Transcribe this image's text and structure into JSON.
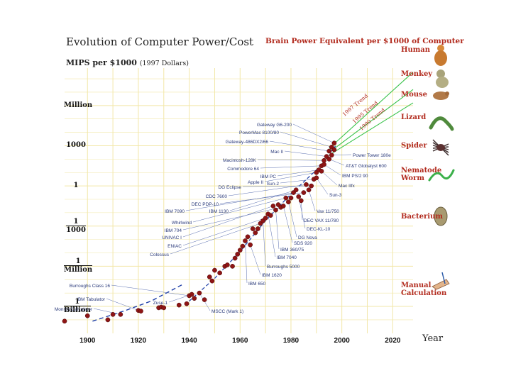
{
  "title": "Evolution of Computer Power/Cost",
  "right_title": "Brain Power Equivalent per $1000 of Computer",
  "axis_title": "MIPS per $1000",
  "axis_title_note": "(1997 Dollars)",
  "colors": {
    "grid": "#f2e7a8",
    "point": "#8e1515",
    "trend": "#1e3fa8",
    "green": "#39c24a",
    "brain": "#b22b1e"
  },
  "y_labels": [
    {
      "value": 6,
      "num": "Million",
      "den": ""
    },
    {
      "value": 3,
      "num": "1000",
      "den": ""
    },
    {
      "value": 0,
      "num": "1",
      "den": ""
    },
    {
      "value": -3,
      "num": "1",
      "den": "1000"
    },
    {
      "value": -6,
      "num": "1",
      "den": "Million"
    },
    {
      "value": -9,
      "num": "1",
      "den": "Billion"
    }
  ],
  "organisms": [
    {
      "name": "Human",
      "level": 7.5,
      "icon": "human-icon"
    },
    {
      "name": "Monkey",
      "level": 6.3,
      "icon": "monkey-icon"
    },
    {
      "name": "Mouse",
      "level": 5.0,
      "icon": "mouse-icon"
    },
    {
      "name": "Lizard",
      "level": 3.7,
      "icon": "lizard-icon"
    },
    {
      "name": "Spider",
      "level": 2.3,
      "icon": "spider-icon"
    },
    {
      "name": "Nematode Worm",
      "level": 0.7,
      "icon": "worm-icon"
    },
    {
      "name": "Bacterium",
      "level": -2.9,
      "icon": "bacterium-icon"
    },
    {
      "name": "Manual Calculation",
      "level": -7.8,
      "icon": "hand-icon"
    }
  ],
  "trend_labels": [
    "1997 Trend",
    "1995 Trend",
    "1990 Trend"
  ],
  "chart_data": {
    "type": "scatter",
    "title": "Evolution of Computer Power/Cost",
    "xlabel": "Year",
    "ylabel": "MIPS per $1000 (1997 Dollars)",
    "y_scale": "log10",
    "xlim": [
      1891,
      2028
    ],
    "ylim": [
      -10.8,
      8.8
    ],
    "x_ticks": [
      1900,
      1920,
      1940,
      1960,
      1980,
      2000,
      2020
    ],
    "x_tick_labels": [
      "1900",
      "1920",
      "1940",
      "1960",
      "1980",
      "2000",
      "2020"
    ],
    "points": [
      [
        1891,
        -10.1
      ],
      [
        1900,
        -9.7
      ],
      [
        1908,
        -10.0
      ],
      [
        1910,
        -9.6
      ],
      [
        1913,
        -9.6
      ],
      [
        1920,
        -9.3
      ],
      [
        1921,
        -9.35
      ],
      [
        1928,
        -9.1
      ],
      [
        1929,
        -9.05
      ],
      [
        1930,
        -9.1
      ],
      [
        1936,
        -8.9
      ],
      [
        1939,
        -8.8
      ],
      [
        1940,
        -8.2
      ],
      [
        1941,
        -8.1
      ],
      [
        1942,
        -8.4
      ],
      [
        1944,
        -8.0
      ],
      [
        1946,
        -8.5
      ],
      [
        1948,
        -6.8
      ],
      [
        1949,
        -7.1
      ],
      [
        1950,
        -6.3
      ],
      [
        1952,
        -6.5
      ],
      [
        1954,
        -6.0
      ],
      [
        1955,
        -5.9
      ],
      [
        1957,
        -6.0
      ],
      [
        1958,
        -5.4
      ],
      [
        1959,
        -5.1
      ],
      [
        1960,
        -4.8
      ],
      [
        1961,
        -4.5
      ],
      [
        1962,
        -4.1
      ],
      [
        1963,
        -3.8
      ],
      [
        1964,
        -4.4
      ],
      [
        1965,
        -3.2
      ],
      [
        1966,
        -3.5
      ],
      [
        1967,
        -3.2
      ],
      [
        1968,
        -2.8
      ],
      [
        1969,
        -2.6
      ],
      [
        1970,
        -2.4
      ],
      [
        1971,
        -2.1
      ],
      [
        1972,
        -2.2
      ],
      [
        1973,
        -1.5
      ],
      [
        1974,
        -1.8
      ],
      [
        1975,
        -1.4
      ],
      [
        1976,
        -1.6
      ],
      [
        1977,
        -1.5
      ],
      [
        1978,
        -0.9
      ],
      [
        1979,
        -1.2
      ],
      [
        1980,
        -0.9
      ],
      [
        1981,
        -0.5
      ],
      [
        1982,
        -0.3
      ],
      [
        1983,
        -0.8
      ],
      [
        1984,
        -1.1
      ],
      [
        1985,
        -0.5
      ],
      [
        1986,
        0.1
      ],
      [
        1987,
        -0.3
      ],
      [
        1988,
        0.0
      ],
      [
        1989,
        0.5
      ],
      [
        1990,
        0.6
      ],
      [
        1990,
        1.0
      ],
      [
        1991,
        1.2
      ],
      [
        1992,
        1.5
      ],
      [
        1992,
        1.1
      ],
      [
        1993,
        1.6
      ],
      [
        1993,
        1.9
      ],
      [
        1994,
        2.2
      ],
      [
        1995,
        2.0
      ],
      [
        1995,
        2.6
      ],
      [
        1996,
        2.3
      ],
      [
        1996,
        2.9
      ],
      [
        1997,
        3.2
      ],
      [
        1997,
        2.7
      ]
    ],
    "labels": [
      {
        "text": "Gateway G6-200",
        "x": 1997,
        "y": 3.2
      },
      {
        "text": "PowerMac 8100/80",
        "x": 1996,
        "y": 2.9
      },
      {
        "text": "Gateway-486DX2/66",
        "x": 1995,
        "y": 2.6
      },
      {
        "text": "Mac II",
        "x": 1994,
        "y": 2.2
      },
      {
        "text": "Macintosh-128K",
        "x": 1993,
        "y": 1.9
      },
      {
        "text": "Commodore 64",
        "x": 1992,
        "y": 1.5
      },
      {
        "text": "IBM PC",
        "x": 1991,
        "y": 1.2
      },
      {
        "text": "Apple II",
        "x": 1990,
        "y": 1.0
      },
      {
        "text": "Sun-2",
        "x": 1989,
        "y": 0.5
      },
      {
        "text": "DG Eclipse",
        "x": 1988,
        "y": 0.0
      },
      {
        "text": "CDC 7600",
        "x": 1986,
        "y": 0.1
      },
      {
        "text": "DEC PDP-10",
        "x": 1985,
        "y": -0.5
      },
      {
        "text": "IBM 7090",
        "x": 1981,
        "y": -0.5
      },
      {
        "text": "IBM 1130",
        "x": 1982,
        "y": -0.3
      },
      {
        "text": "Whirlwind",
        "x": 1978,
        "y": -0.9
      },
      {
        "text": "IBM 704",
        "x": 1976,
        "y": -1.6
      },
      {
        "text": "UNIVAC I",
        "x": 1973,
        "y": -1.5
      },
      {
        "text": "ENIAC",
        "x": 1970,
        "y": -2.4
      },
      {
        "text": "Colossus",
        "x": 1968,
        "y": -2.8
      },
      {
        "text": "Burroughs Class 16",
        "x": 1940,
        "y": -8.2
      },
      {
        "text": "IBM Tabulator",
        "x": 1920,
        "y": -9.3
      },
      {
        "text": "Monroe Calculator",
        "x": 1913,
        "y": -9.6
      },
      {
        "text": "Zuse-1",
        "x": 1941,
        "y": -8.1
      },
      {
        "text": "Power Tower 180e",
        "x": 1996,
        "y": 2.3
      },
      {
        "text": "AT&T Globalyst 600",
        "x": 1995,
        "y": 2.0
      },
      {
        "text": "IBM PS/2 90",
        "x": 1993,
        "y": 1.6
      },
      {
        "text": "Mac IIfx",
        "x": 1992,
        "y": 1.1
      },
      {
        "text": "Sun-3",
        "x": 1990,
        "y": 0.6
      },
      {
        "text": "Vax 11/750",
        "x": 1987,
        "y": -0.3
      },
      {
        "text": "DEC VAX 11/780",
        "x": 1984,
        "y": -1.1
      },
      {
        "text": "DEC-KL-10",
        "x": 1983,
        "y": -0.8
      },
      {
        "text": "DG Nova",
        "x": 1979,
        "y": -1.2
      },
      {
        "text": "SDS 920",
        "x": 1977,
        "y": -1.5
      },
      {
        "text": "IBM 360/75",
        "x": 1974,
        "y": -1.8
      },
      {
        "text": "IBM 7040",
        "x": 1971,
        "y": -2.1
      },
      {
        "text": "Burroughs 5000",
        "x": 1969,
        "y": -2.6
      },
      {
        "text": "IBM 1620",
        "x": 1964,
        "y": -4.4
      },
      {
        "text": "IBM 650",
        "x": 1962,
        "y": -4.1
      },
      {
        "text": "MSCC (Mark 1)",
        "x": 1944,
        "y": -8.0
      }
    ],
    "trend_dashed": [
      [
        1902,
        -10.1
      ],
      [
        1915,
        -9.3
      ],
      [
        1925,
        -8.6
      ],
      [
        1935,
        -7.6
      ],
      [
        1938,
        -7.3
      ]
    ],
    "trend_main": [
      [
        1940,
        -8.6
      ],
      [
        1950,
        -6.9
      ],
      [
        1960,
        -4.9
      ],
      [
        1970,
        -2.6
      ],
      [
        1980,
        -0.6
      ],
      [
        1990,
        1.2
      ],
      [
        1998,
        3.1
      ]
    ],
    "trend_lines": [
      {
        "name": "1997 Trend",
        "from": [
          1995,
          2.8
        ],
        "to": [
          2028,
          8.5
        ]
      },
      {
        "name": "1995 Trend",
        "from": [
          1995,
          2.5
        ],
        "to": [
          2028,
          7.2
        ]
      },
      {
        "name": "1990 Trend",
        "from": [
          1995,
          2.3
        ],
        "to": [
          2028,
          6.2
        ]
      }
    ]
  }
}
